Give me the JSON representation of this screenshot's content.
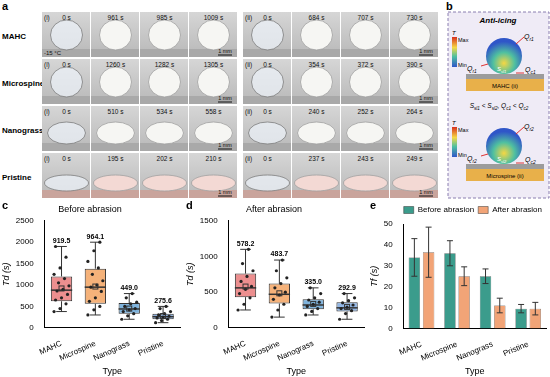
{
  "panel_a": {
    "panel_label": "a",
    "temperature": "-15 °C",
    "scale_bar": "1 mm",
    "conditions": [
      "(i)",
      "(ii)"
    ],
    "rows": [
      {
        "label": "MAHC",
        "times": [
          [
            "0 s",
            "961 s",
            "985 s",
            "1009 s"
          ],
          [
            "0 s",
            "684 s",
            "707 s",
            "730 s"
          ]
        ]
      },
      {
        "label": "Microspine",
        "times": [
          [
            "0 s",
            "1260 s",
            "1282 s",
            "1305 s"
          ],
          [
            "0 s",
            "354 s",
            "372 s",
            "390 s"
          ]
        ]
      },
      {
        "label": "Nanograss",
        "times": [
          [
            "0 s",
            "510 s",
            "534 s",
            "558 s"
          ],
          [
            "0 s",
            "240 s",
            "252 s",
            "264 s"
          ]
        ]
      },
      {
        "label": "Pristine",
        "times": [
          [
            "0 s",
            "195 s",
            "202 s",
            "210 s"
          ],
          [
            "0 s",
            "237 s",
            "243 s",
            "249 s"
          ]
        ]
      }
    ]
  },
  "panel_b": {
    "panel_label": "b",
    "title": "Anti-icing",
    "colorbar": {
      "label": "T",
      "max": "Max",
      "min": "Min"
    },
    "diagrams": [
      {
        "substrate": "MAHC (ii)",
        "radiation": {
          "base": "Q",
          "sub": "r1"
        },
        "contact_area": {
          "base": "S",
          "sub": "sl1"
        },
        "conduction": {
          "base": "Q",
          "sub": "c1"
        }
      },
      {
        "substrate": "Microspine (ii)",
        "radiation": {
          "base": "Q",
          "sub": "r2"
        },
        "contact_area": {
          "base": "S",
          "sub": "sl2"
        },
        "conduction": {
          "base": "Q",
          "sub": "c2"
        }
      }
    ],
    "relation": [
      {
        "base": "S",
        "sub": "sl1"
      },
      {
        "text": " < "
      },
      {
        "base": "S",
        "sub": "sl2"
      },
      {
        "text": ", "
      },
      {
        "base": "Q",
        "sub": "c1"
      },
      {
        "text": " < "
      },
      {
        "base": "Q",
        "sub": "c2"
      }
    ]
  },
  "chart_data": [
    {
      "type": "box",
      "panel_label": "c",
      "title": "Before abrasion",
      "x_label": "Type",
      "y_label": "Td (s)",
      "categories": [
        "MAHC",
        "Microspine",
        "Nanograss",
        "Pristine"
      ],
      "colors": [
        "#ec8f8f",
        "#f5b27a",
        "#7fb3dc",
        "#92b7e6"
      ],
      "stats": [
        {
          "min": 380,
          "q1": 620,
          "median": 880,
          "q3": 1200,
          "max": 1900
        },
        {
          "min": 300,
          "q1": 560,
          "median": 950,
          "q3": 1380,
          "max": 2000
        },
        {
          "min": 200,
          "q1": 330,
          "median": 440,
          "q3": 580,
          "max": 800
        },
        {
          "min": 120,
          "q1": 200,
          "median": 260,
          "q3": 330,
          "max": 500
        }
      ],
      "points": [
        [
          380,
          450,
          560,
          650,
          700,
          780,
          860,
          900,
          980,
          1050,
          1150,
          1250,
          1400,
          1650,
          1900
        ],
        [
          300,
          420,
          500,
          620,
          700,
          850,
          950,
          1000,
          1100,
          1250,
          1400,
          1550,
          1800,
          2000
        ],
        [
          200,
          280,
          330,
          380,
          420,
          450,
          500,
          560,
          600,
          700,
          800
        ],
        [
          120,
          170,
          200,
          230,
          250,
          270,
          300,
          330,
          380,
          450,
          500
        ]
      ],
      "values": [
        919.5,
        964.1,
        449.0,
        275.6
      ],
      "value_labels": [
        "919.5",
        "964.1",
        "449.0",
        "275.6"
      ],
      "data_labels": true,
      "ylim": [
        0,
        2500
      ],
      "yticks": [
        0,
        500,
        1000,
        1500,
        2000,
        2500
      ],
      "grid": false
    },
    {
      "type": "box",
      "panel_label": "d",
      "title": "After abrasion",
      "x_label": "Type",
      "y_label": "Td (s)",
      "categories": [
        "MAHC",
        "Microspine",
        "Nanograss",
        "Pristine"
      ],
      "colors": [
        "#ec8f8f",
        "#f5b27a",
        "#7fb3dc",
        "#92b7e6"
      ],
      "stats": [
        {
          "min": 250,
          "q1": 430,
          "median": 560,
          "q3": 760,
          "max": 1100
        },
        {
          "min": 150,
          "q1": 340,
          "median": 470,
          "q3": 620,
          "max": 950
        },
        {
          "min": 180,
          "q1": 260,
          "median": 320,
          "q3": 400,
          "max": 560
        },
        {
          "min": 120,
          "q1": 230,
          "median": 280,
          "q3": 360,
          "max": 480
        }
      ],
      "points": [
        [
          250,
          330,
          420,
          480,
          540,
          580,
          650,
          720,
          800,
          900,
          1100
        ],
        [
          150,
          250,
          330,
          400,
          460,
          500,
          560,
          620,
          700,
          800,
          950
        ],
        [
          180,
          230,
          270,
          300,
          330,
          360,
          390,
          420,
          480,
          560
        ],
        [
          120,
          200,
          240,
          270,
          290,
          320,
          350,
          380,
          420,
          480
        ]
      ],
      "values": [
        578.2,
        483.7,
        335.0,
        292.9
      ],
      "value_labels": [
        "578.2",
        "483.7",
        "335.0",
        "292.9"
      ],
      "data_labels": true,
      "ylim": [
        0,
        1500
      ],
      "yticks": [
        0,
        500,
        1000,
        1500
      ],
      "grid": false
    },
    {
      "type": "bar",
      "panel_label": "e",
      "x_label": "Type",
      "y_label": "Tf (s)",
      "categories": [
        "MAHC",
        "Microspine",
        "Nanograss",
        "Pristine"
      ],
      "series": [
        {
          "name": "Before abrasion",
          "color": "#3b9c8c",
          "values": [
            34,
            36,
            25,
            9.5
          ],
          "errors": [
            9,
            6,
            3.5,
            2
          ]
        },
        {
          "name": "After abrasion",
          "color": "#f2a477",
          "values": [
            36.5,
            25,
            11,
            9.5
          ],
          "errors": [
            12,
            4.5,
            3.5,
            3
          ]
        }
      ],
      "ylim": [
        0,
        50
      ],
      "yticks": [
        0,
        10,
        20,
        30,
        40,
        50
      ],
      "grid": false,
      "legend": "upper right"
    }
  ]
}
